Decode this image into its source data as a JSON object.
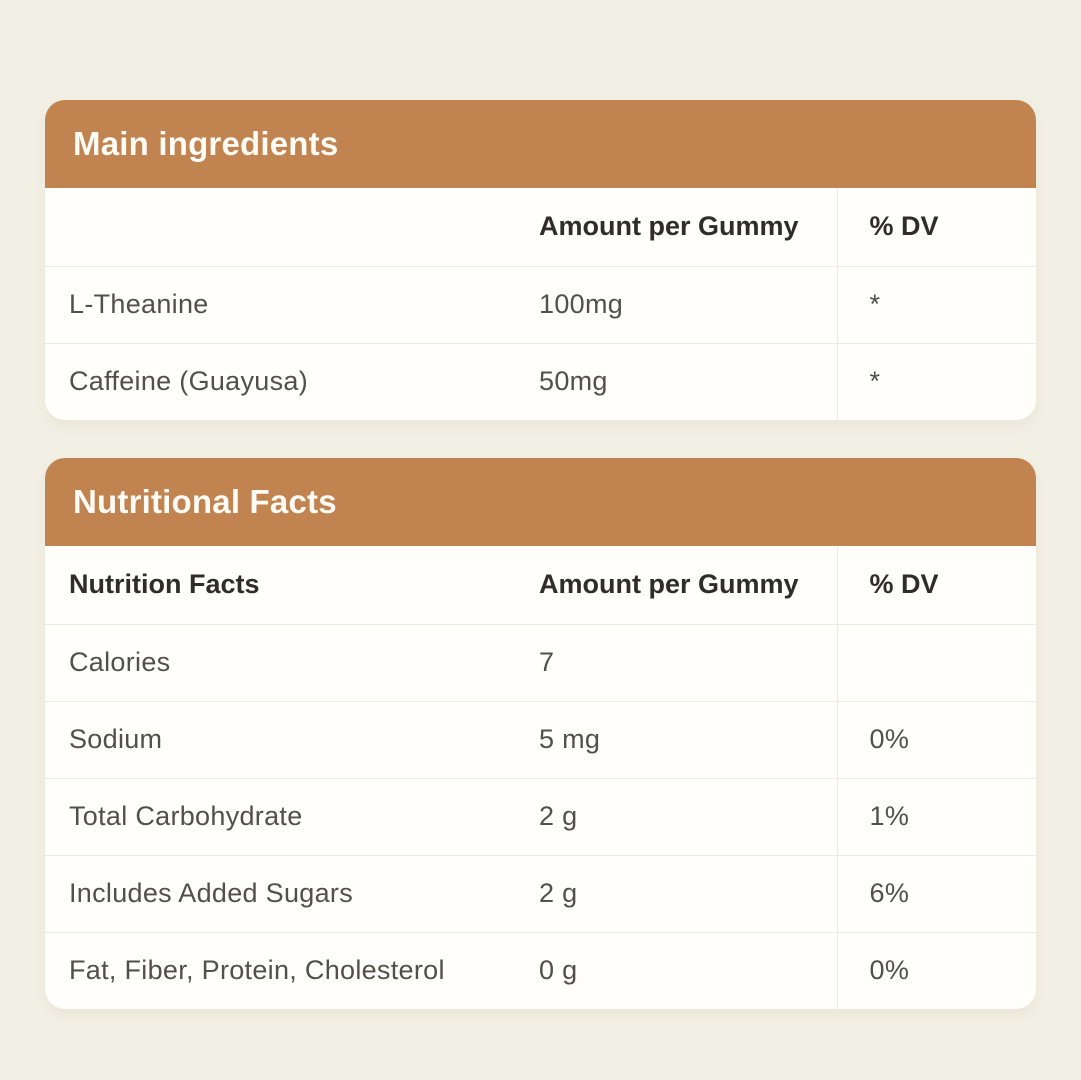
{
  "theme": {
    "bg": "#F2EFE4",
    "accent": "#C18350",
    "card_bg": "#FFFEFB",
    "divider": "#EDEAE4",
    "heading_text": "#2F2D2A",
    "body_text": "#534F4A",
    "title_text": "#FFFCF6"
  },
  "tables": [
    {
      "title": "Main ingredients",
      "columns": {
        "name": "",
        "amount": "Amount per Gummy",
        "dv": "% DV"
      },
      "rows": [
        {
          "name": "L-Theanine",
          "amount": "100mg",
          "dv": "*"
        },
        {
          "name": "Caffeine (Guayusa)",
          "amount": "50mg",
          "dv": "*"
        }
      ]
    },
    {
      "title": "Nutritional Facts",
      "columns": {
        "name": "Nutrition Facts",
        "amount": "Amount per Gummy",
        "dv": "% DV"
      },
      "rows": [
        {
          "name": "Calories",
          "amount": "7",
          "dv": ""
        },
        {
          "name": "Sodium",
          "amount": "5 mg",
          "dv": "0%"
        },
        {
          "name": "Total Carbohydrate",
          "amount": "2 g",
          "dv": "1%"
        },
        {
          "name": "Includes Added Sugars",
          "amount": "2 g",
          "dv": "6%"
        },
        {
          "name": "Fat, Fiber, Protein, Cholesterol",
          "amount": "0 g",
          "dv": "0%"
        }
      ]
    }
  ]
}
